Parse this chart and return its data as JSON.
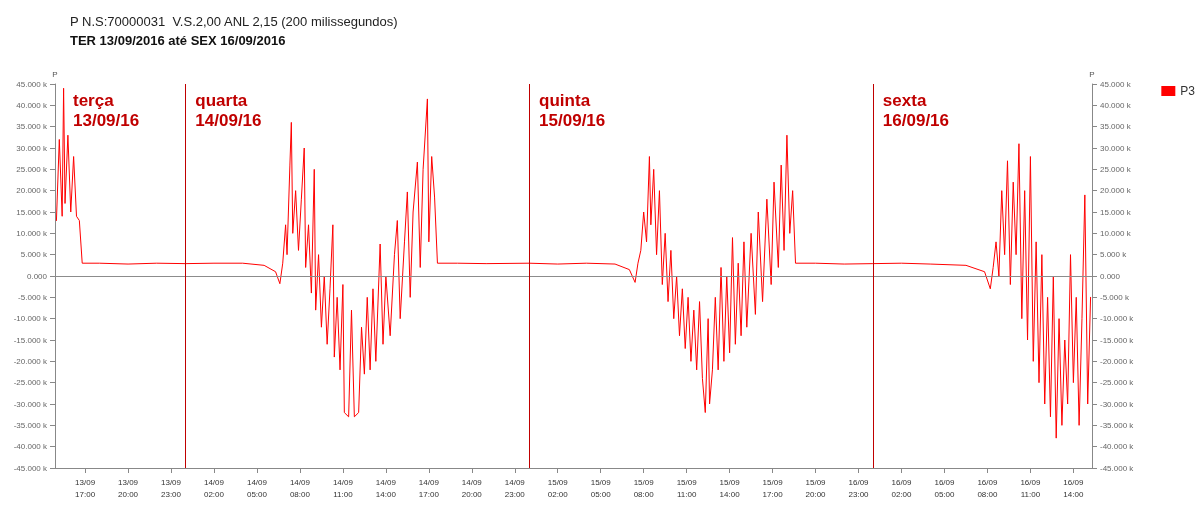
{
  "chart_data": {
    "type": "line",
    "title": "P N.S:70000031  V.S.2,00 ANL 2,15 (200 milissegundos)",
    "subtitle": "TER 13/09/2016 até SEX 16/09/2016",
    "ylabel": "P",
    "y2label": "P",
    "annotations": [
      "terça\n13/09/16"
    ],
    "xlim": [
      "2016-09-13T14:54",
      "2016-09-16T15:18"
    ],
    "xticks": [
      {
        "value": "2016-09-13T17:00",
        "label": "13/09\n17:00"
      },
      {
        "value": "2016-09-13T20:00",
        "label": "13/09\n20:00"
      },
      {
        "value": "2016-09-13T23:00",
        "label": "13/09\n23:00"
      },
      {
        "value": "2016-09-14T02:00",
        "label": "14/09\n02:00"
      },
      {
        "value": "2016-09-14T05:00",
        "label": "14/09\n05:00"
      },
      {
        "value": "2016-09-14T08:00",
        "label": "14/09\n08:00"
      },
      {
        "value": "2016-09-14T11:00",
        "label": "14/09\n11:00"
      },
      {
        "value": "2016-09-14T14:00",
        "label": "14/09\n14:00"
      },
      {
        "value": "2016-09-14T17:00",
        "label": "14/09\n17:00"
      },
      {
        "value": "2016-09-14T20:00",
        "label": "14/09\n20:00"
      },
      {
        "value": "2016-09-14T23:00",
        "label": "14/09\n23:00"
      },
      {
        "value": "2016-09-15T02:00",
        "label": "15/09\n02:00"
      },
      {
        "value": "2016-09-15T05:00",
        "label": "15/09\n05:00"
      },
      {
        "value": "2016-09-15T08:00",
        "label": "15/09\n08:00"
      },
      {
        "value": "2016-09-15T11:00",
        "label": "15/09\n11:00"
      },
      {
        "value": "2016-09-15T14:00",
        "label": "15/09\n14:00"
      },
      {
        "value": "2016-09-15T17:00",
        "label": "15/09\n17:00"
      },
      {
        "value": "2016-09-15T20:00",
        "label": "15/09\n20:00"
      },
      {
        "value": "2016-09-15T23:00",
        "label": "16/09\n23:00"
      },
      {
        "value": "2016-09-16T02:00",
        "label": "16/09\n02:00"
      },
      {
        "value": "2016-09-16T05:00",
        "label": "16/09\n05:00"
      },
      {
        "value": "2016-09-16T08:00",
        "label": "16/09\n08:00"
      },
      {
        "value": "2016-09-16T11:00",
        "label": "16/09\n11:00"
      },
      {
        "value": "2016-09-16T14:00",
        "label": "16/09\n14:00"
      }
    ],
    "ylim": [
      -45000,
      45000
    ],
    "yticks": [
      {
        "value": 45000,
        "label": "45.000 k"
      },
      {
        "value": 40000,
        "label": "40.000 k"
      },
      {
        "value": 35000,
        "label": "35.000 k"
      },
      {
        "value": 30000,
        "label": "30.000 k"
      },
      {
        "value": 25000,
        "label": "25.000 k"
      },
      {
        "value": 20000,
        "label": "20.000 k"
      },
      {
        "value": 15000,
        "label": "15.000 k"
      },
      {
        "value": 10000,
        "label": "10.000 k"
      },
      {
        "value": 5000,
        "label": "5.000 k"
      },
      {
        "value": 0,
        "label": "0.000"
      },
      {
        "value": -5000,
        "label": "-5.000 k"
      },
      {
        "value": -10000,
        "label": "-10.000 k"
      },
      {
        "value": -15000,
        "label": "-15.000 k"
      },
      {
        "value": -20000,
        "label": "-20.000 k"
      },
      {
        "value": -25000,
        "label": "-25.000 k"
      },
      {
        "value": -30000,
        "label": "-30.000 k"
      },
      {
        "value": -35000,
        "label": "-35.000 k"
      },
      {
        "value": -40000,
        "label": "-40.000 k"
      },
      {
        "value": -45000,
        "label": "-45.000 k"
      }
    ],
    "y2lim": [
      -45000,
      45000
    ],
    "y2ticks": [
      {
        "value": 45000,
        "label": "45.000 k"
      },
      {
        "value": 40000,
        "label": "40.000 k"
      },
      {
        "value": 35000,
        "label": "35.000 k"
      },
      {
        "value": 30000,
        "label": "30.000 k"
      },
      {
        "value": 25000,
        "label": "25.000 k"
      },
      {
        "value": 20000,
        "label": "20.000 k"
      },
      {
        "value": 15000,
        "label": "15.000 k"
      },
      {
        "value": 10000,
        "label": "10.000 k"
      },
      {
        "value": 5000,
        "label": "5.000 k"
      },
      {
        "value": 0,
        "label": "0.000"
      },
      {
        "value": -5000,
        "label": "-5.000 k"
      },
      {
        "value": -10000,
        "label": "-10.000 k"
      },
      {
        "value": -15000,
        "label": "-15.000 k"
      },
      {
        "value": -20000,
        "label": "-20.000 k"
      },
      {
        "value": -25000,
        "label": "-25.000 k"
      },
      {
        "value": -30000,
        "label": "-30.000 k"
      },
      {
        "value": -35000,
        "label": "-35.000 k"
      },
      {
        "value": -40000,
        "label": "-40.000 k"
      },
      {
        "value": -45000,
        "label": "-45.000 k"
      }
    ],
    "ref_lines": [
      {
        "axis": "y",
        "value": 0,
        "label": null,
        "color": "#8c8c8c"
      },
      {
        "axis": "x",
        "value": "2016-09-14T00:00",
        "label": "quarta\n14/09/16",
        "color": "#c00000"
      },
      {
        "axis": "x",
        "value": "2016-09-15T00:00",
        "label": "quinta\n15/09/16",
        "color": "#c00000"
      },
      {
        "axis": "x",
        "value": "2016-09-16T00:00",
        "label": "sexta\n16/09/16",
        "color": "#c00000"
      }
    ],
    "legend": "top right",
    "grid": false,
    "marker": "none",
    "line_style": "solid",
    "series": [
      {
        "name": "P3",
        "color": "#ff0000",
        "x": [
          "2016-09-13T15:00",
          "2016-09-13T15:12",
          "2016-09-13T15:24",
          "2016-09-13T15:30",
          "2016-09-13T15:36",
          "2016-09-13T15:48",
          "2016-09-13T16:00",
          "2016-09-13T16:12",
          "2016-09-13T16:24",
          "2016-09-13T16:36",
          "2016-09-13T16:48",
          "2016-09-13T18:00",
          "2016-09-13T20:00",
          "2016-09-13T22:00",
          "2016-09-14T00:00",
          "2016-09-14T02:00",
          "2016-09-14T04:00",
          "2016-09-14T05:30",
          "2016-09-14T06:18",
          "2016-09-14T06:36",
          "2016-09-14T06:48",
          "2016-09-14T07:00",
          "2016-09-14T07:06",
          "2016-09-14T07:18",
          "2016-09-14T07:24",
          "2016-09-14T07:30",
          "2016-09-14T07:42",
          "2016-09-14T07:54",
          "2016-09-14T08:06",
          "2016-09-14T08:18",
          "2016-09-14T08:24",
          "2016-09-14T08:36",
          "2016-09-14T08:48",
          "2016-09-14T09:00",
          "2016-09-14T09:06",
          "2016-09-14T09:18",
          "2016-09-14T09:30",
          "2016-09-14T09:42",
          "2016-09-14T09:54",
          "2016-09-14T10:06",
          "2016-09-14T10:18",
          "2016-09-14T10:24",
          "2016-09-14T10:36",
          "2016-09-14T10:48",
          "2016-09-14T11:00",
          "2016-09-14T11:06",
          "2016-09-14T11:24",
          "2016-09-14T11:36",
          "2016-09-14T11:48",
          "2016-09-14T12:06",
          "2016-09-14T12:18",
          "2016-09-14T12:30",
          "2016-09-14T12:42",
          "2016-09-14T12:54",
          "2016-09-14T13:06",
          "2016-09-14T13:18",
          "2016-09-14T13:36",
          "2016-09-14T13:48",
          "2016-09-14T14:00",
          "2016-09-14T14:18",
          "2016-09-14T14:36",
          "2016-09-14T14:48",
          "2016-09-14T15:00",
          "2016-09-14T15:18",
          "2016-09-14T15:30",
          "2016-09-14T15:42",
          "2016-09-14T15:54",
          "2016-09-14T16:12",
          "2016-09-14T16:24",
          "2016-09-14T16:36",
          "2016-09-14T16:54",
          "2016-09-14T17:00",
          "2016-09-14T17:12",
          "2016-09-14T17:24",
          "2016-09-14T17:36",
          "2016-09-14T19:00",
          "2016-09-14T21:00",
          "2016-09-15T00:00",
          "2016-09-15T02:00",
          "2016-09-15T04:00",
          "2016-09-15T06:00",
          "2016-09-15T07:00",
          "2016-09-15T07:24",
          "2016-09-15T07:36",
          "2016-09-15T07:48",
          "2016-09-15T08:00",
          "2016-09-15T08:12",
          "2016-09-15T08:24",
          "2016-09-15T08:30",
          "2016-09-15T08:42",
          "2016-09-15T08:54",
          "2016-09-15T09:06",
          "2016-09-15T09:18",
          "2016-09-15T09:30",
          "2016-09-15T09:42",
          "2016-09-15T09:54",
          "2016-09-15T10:06",
          "2016-09-15T10:18",
          "2016-09-15T10:30",
          "2016-09-15T10:42",
          "2016-09-15T10:54",
          "2016-09-15T11:06",
          "2016-09-15T11:18",
          "2016-09-15T11:30",
          "2016-09-15T11:42",
          "2016-09-15T11:54",
          "2016-09-15T12:06",
          "2016-09-15T12:18",
          "2016-09-15T12:30",
          "2016-09-15T12:36",
          "2016-09-15T12:48",
          "2016-09-15T13:00",
          "2016-09-15T13:12",
          "2016-09-15T13:24",
          "2016-09-15T13:36",
          "2016-09-15T13:48",
          "2016-09-15T14:00",
          "2016-09-15T14:12",
          "2016-09-15T14:24",
          "2016-09-15T14:36",
          "2016-09-15T14:48",
          "2016-09-15T15:00",
          "2016-09-15T15:12",
          "2016-09-15T15:30",
          "2016-09-15T15:48",
          "2016-09-15T16:00",
          "2016-09-15T16:18",
          "2016-09-15T16:36",
          "2016-09-15T16:54",
          "2016-09-15T17:06",
          "2016-09-15T17:24",
          "2016-09-15T17:36",
          "2016-09-15T17:48",
          "2016-09-15T18:00",
          "2016-09-15T18:12",
          "2016-09-15T18:24",
          "2016-09-15T18:36",
          "2016-09-15T20:00",
          "2016-09-15T22:00",
          "2016-09-16T00:00",
          "2016-09-16T02:00",
          "2016-09-16T04:00",
          "2016-09-16T06:30",
          "2016-09-16T07:48",
          "2016-09-16T08:12",
          "2016-09-16T08:24",
          "2016-09-16T08:36",
          "2016-09-16T08:48",
          "2016-09-16T09:00",
          "2016-09-16T09:12",
          "2016-09-16T09:24",
          "2016-09-16T09:36",
          "2016-09-16T09:48",
          "2016-09-16T10:00",
          "2016-09-16T10:12",
          "2016-09-16T10:24",
          "2016-09-16T10:36",
          "2016-09-16T10:48",
          "2016-09-16T11:00",
          "2016-09-16T11:12",
          "2016-09-16T11:24",
          "2016-09-16T11:36",
          "2016-09-16T11:48",
          "2016-09-16T12:00",
          "2016-09-16T12:12",
          "2016-09-16T12:24",
          "2016-09-16T12:36",
          "2016-09-16T12:48",
          "2016-09-16T13:00",
          "2016-09-16T13:12",
          "2016-09-16T13:24",
          "2016-09-16T13:36",
          "2016-09-16T13:48",
          "2016-09-16T14:00",
          "2016-09-16T14:12",
          "2016-09-16T14:24",
          "2016-09-16T14:36",
          "2016-09-16T14:48",
          "2016-09-16T15:00",
          "2016-09-16T15:12"
        ],
        "values": [
          13000,
          32000,
          14000,
          44000,
          17000,
          33000,
          15000,
          28000,
          14000,
          13000,
          3000,
          3000,
          2800,
          3000,
          2900,
          3000,
          3000,
          2500,
          1000,
          -1800,
          3000,
          12000,
          5000,
          26000,
          36000,
          10000,
          20000,
          6000,
          18000,
          30000,
          2000,
          12000,
          -4000,
          25000,
          -8000,
          5000,
          -12000,
          0,
          -16000,
          -3000,
          12000,
          -19000,
          -5000,
          -22000,
          -2000,
          -32000,
          -33000,
          -8000,
          -33000,
          -32000,
          -12000,
          -23000,
          -5000,
          -22000,
          -3000,
          -20000,
          7500,
          -16000,
          0,
          -14000,
          5000,
          13000,
          -10000,
          8000,
          19700,
          -5000,
          15000,
          26700,
          2000,
          25000,
          41500,
          8000,
          28000,
          18500,
          3000,
          3000,
          2900,
          3000,
          2800,
          3000,
          2800,
          1500,
          -1500,
          3000,
          6000,
          15000,
          8000,
          28000,
          12000,
          25000,
          5000,
          20000,
          -2000,
          10000,
          -6000,
          6000,
          -10000,
          0,
          -14000,
          -3000,
          -17000,
          -5000,
          -20000,
          -8000,
          -22000,
          -6000,
          -24000,
          -32000,
          -10000,
          -30000,
          -22000,
          -5000,
          -22000,
          2000,
          -20000,
          0,
          -18000,
          9000,
          -16000,
          3000,
          -14000,
          8000,
          -12000,
          10000,
          -9000,
          15000,
          -6000,
          18000,
          -2000,
          22000,
          2000,
          26000,
          6000,
          33000,
          10000,
          20000,
          3000,
          3000,
          2800,
          2900,
          3000,
          2800,
          2500,
          1000,
          -3000,
          2000,
          8000,
          0,
          20000,
          5000,
          27000,
          -2000,
          22000,
          5000,
          31000,
          -10000,
          20000,
          -15000,
          28000,
          -20000,
          8000,
          -25000,
          5000,
          -30000,
          -5000,
          -33000,
          0,
          -38000,
          -10000,
          -35000,
          -15000,
          -30000,
          5000,
          -25000,
          -5000,
          -35000,
          -10000,
          19000,
          -30000,
          -5000
        ]
      }
    ]
  }
}
